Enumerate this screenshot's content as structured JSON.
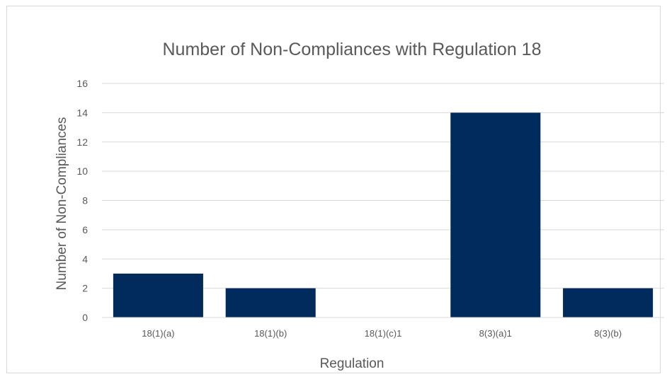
{
  "chart_data": {
    "type": "bar",
    "title": "Number of Non-Compliances with Regulation 18",
    "xlabel": "Regulation",
    "ylabel": "Number of Non-Compliances",
    "categories": [
      "18(1)(a)",
      "18(1)(b)",
      "18(1)(c)1",
      "8(3)(a)1",
      "8(3)(b)"
    ],
    "values": [
      3,
      2,
      0,
      14,
      2
    ],
    "ylim": [
      0,
      16
    ],
    "yticks": [
      "0",
      "2",
      "4",
      "6",
      "8",
      "10",
      "12",
      "14",
      "16"
    ],
    "grid": true,
    "legend": "none",
    "bar_color": "#002b5c"
  }
}
